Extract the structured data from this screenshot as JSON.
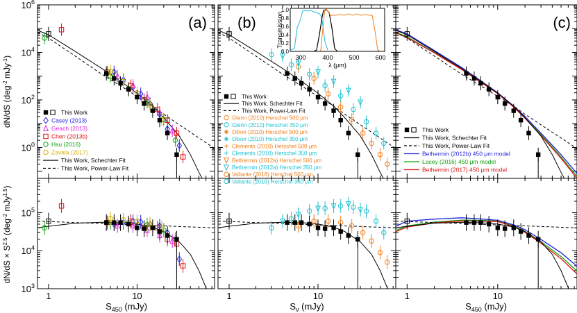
{
  "chart_data": {
    "type": "scatter",
    "yscale": "log",
    "xscale": "log",
    "top_ylim": [
      0.05,
      1000000
    ],
    "bottom_ylim": [
      1000,
      800000
    ],
    "xlim": [
      0.75,
      75
    ],
    "top_yticks": [
      {
        "v": 1,
        "label": "10",
        "sup": "0"
      },
      {
        "v": 100,
        "label": "10",
        "sup": "2"
      },
      {
        "v": 10000,
        "label": "10",
        "sup": "4"
      },
      {
        "v": 1000000,
        "label": "10",
        "sup": "6"
      }
    ],
    "bottom_yticks": [
      {
        "v": 1000,
        "label": "10",
        "sup": "3"
      },
      {
        "v": 10000,
        "label": "10",
        "sup": "4"
      },
      {
        "v": 100000,
        "label": "10",
        "sup": "5"
      }
    ],
    "xticks": [
      {
        "v": 1,
        "label": "1"
      },
      {
        "v": 10,
        "label": "10"
      }
    ],
    "ylabel_top": {
      "main": "dN/dS (deg",
      "sup1": "-2",
      "mid": " mJy",
      "sup2": "-1",
      "end": ")"
    },
    "ylabel_bottom": {
      "main": "dN/dS × S",
      "sup1": "2.5",
      "mid": " (deg",
      "sup2": "-2",
      "mid2": " mJy",
      "sup3": "1.5",
      "end": ")"
    },
    "panels": [
      {
        "label": "(a)",
        "xlabel": {
          "main": "S",
          "sub": "450",
          "end": " (mJy)"
        },
        "legend": [
          {
            "text": "This Work",
            "color": "#000000",
            "marker": "this"
          },
          {
            "text": "Casey (2013)",
            "color": "#1f1fdd",
            "marker": "diamond"
          },
          {
            "text": "Geach (2013)",
            "color": "#e020e0",
            "marker": "triangle"
          },
          {
            "text": "Chen (2013b)",
            "color": "#e01010",
            "marker": "square"
          },
          {
            "text": "Hsu (2016)",
            "color": "#10a010",
            "marker": "circle"
          },
          {
            "text": "Zavala (2017)",
            "color": "#d8b000",
            "marker": "circle"
          },
          {
            "text": "This Work, Schechter Fit",
            "color": "#000000",
            "marker": "solid"
          },
          {
            "text": "This Work, Power-Law Fit",
            "color": "#000000",
            "marker": "dashed"
          }
        ],
        "series": [
          {
            "name": "Casey (2013)",
            "color": "#1f1fdd",
            "marker": "diamond",
            "x": [
              5.5,
              7,
              9,
              11,
              14,
              18,
              22,
              30
            ],
            "y": [
              1500,
              700,
              350,
              180,
              70,
              25,
              6,
              1.2
            ]
          },
          {
            "name": "Geach (2013)",
            "color": "#e020e0",
            "marker": "triangle",
            "x": [
              6,
              9,
              13,
              18,
              25
            ],
            "y": [
              1000,
              400,
              130,
              30,
              5
            ]
          },
          {
            "name": "Chen (2013b)",
            "color": "#e01010",
            "marker": "square",
            "x": [
              1.4,
              4.6,
              8.5,
              12,
              17,
              22,
              28,
              33
            ],
            "y": [
              90000,
              1500,
              400,
              100,
              40,
              14,
              4,
              0.4
            ]
          },
          {
            "name": "Hsu (2016)",
            "color": "#10a010",
            "marker": "circle",
            "x": [
              0.9,
              5,
              8,
              13,
              20,
              27
            ],
            "y": [
              40000,
              1000,
              300,
              80,
              15,
              2
            ]
          },
          {
            "name": "Zavala (2017)",
            "color": "#d8b000",
            "marker": "circle",
            "x": [
              5,
              7,
              10,
              14,
              19
            ],
            "y": [
              1600,
              600,
              200,
              60,
              15
            ]
          }
        ],
        "bottom_series": [
          {
            "name": "Casey (2013)",
            "color": "#1f1fdd",
            "marker": "diamond",
            "x": [
              5.5,
              7,
              9,
              11,
              14,
              18,
              22,
              30
            ],
            "y": [
              50000,
              55000,
              60000,
              57000,
              50000,
              45000,
              30000,
              6000
            ]
          },
          {
            "name": "Geach (2013)",
            "color": "#e020e0",
            "marker": "triangle",
            "x": [
              6,
              9,
              13,
              18,
              25
            ],
            "y": [
              45000,
              45000,
              35000,
              25000,
              18000
            ]
          },
          {
            "name": "Chen (2013b)",
            "color": "#e01010",
            "marker": "square",
            "x": [
              1.4,
              4.6,
              8.5,
              12,
              17,
              22,
              28,
              33
            ],
            "y": [
              150000,
              55000,
              60000,
              40000,
              40000,
              20000,
              15000,
              4000
            ]
          },
          {
            "name": "Hsu (2016)",
            "color": "#10a010",
            "marker": "circle",
            "x": [
              0.9,
              5,
              8,
              13,
              20,
              27
            ],
            "y": [
              40000,
              55000,
              55000,
              48000,
              35000,
              20000
            ]
          },
          {
            "name": "Zavala (2017)",
            "color": "#d8b000",
            "marker": "circle",
            "x": [
              5,
              7,
              10,
              14,
              19
            ],
            "y": [
              70000,
              65000,
              60000,
              50000,
              40000
            ]
          }
        ]
      },
      {
        "label": "(b)",
        "xlabel": {
          "main": "S",
          "sub": "ν",
          "end": " (mJy)"
        },
        "legend": [
          {
            "text": "This Work",
            "color": "#000000",
            "marker": "this"
          },
          {
            "text": "This Work, Schechter Fit",
            "color": "#000000",
            "marker": "solid"
          },
          {
            "text": "This Work, Power-Law Fit",
            "color": "#000000",
            "marker": "dashed"
          },
          {
            "text": "Glenn (2010) Herschel 500 μm",
            "color": "#f08020",
            "marker": "circle"
          },
          {
            "text": "Glenn (2010) Herschel 350 μm",
            "color": "#20c0d0",
            "marker": "circle"
          },
          {
            "text": "Oliver (2010) Herschel 500 μm",
            "color": "#f08020",
            "marker": "asterisk"
          },
          {
            "text": "Oliver (2010) Herschel 350 μm",
            "color": "#20c0d0",
            "marker": "asterisk"
          },
          {
            "text": "Clements (2010) Herschel 500 μm",
            "color": "#f08020",
            "marker": "plus"
          },
          {
            "text": "Clements (2010) Herschel 350 μm",
            "color": "#20c0d0",
            "marker": "plus"
          },
          {
            "text": "Bethermin (2012a) Herschel 500 μm",
            "color": "#f08020",
            "marker": "dtriangle"
          },
          {
            "text": "Bethermin (2012a) Herschel 350 μm",
            "color": "#20c0d0",
            "marker": "dtriangle"
          },
          {
            "text": "Valiante (2016) Herschel 500 μm",
            "color": "#f08020",
            "marker": "circle"
          },
          {
            "text": "Valiante (2016) Herschel 350 μm",
            "color": "#20c0d0",
            "marker": "circle"
          }
        ],
        "series": [
          {
            "name": "Herschel 500 μm",
            "color": "#f08020",
            "marker": "circle",
            "x": [
              6,
              9,
              13,
              18,
              24,
              32,
              40,
              50,
              60
            ],
            "y": [
              2500,
              800,
              180,
              50,
              15,
              4,
              1.5,
              0.5,
              0.2
            ]
          },
          {
            "name": "Herschel 350 μm",
            "color": "#20c0d0",
            "marker": "circle",
            "x": [
              3,
              5,
              8,
              12,
              18,
              25,
              35,
              45,
              55
            ],
            "y": [
              8000,
              3000,
              1200,
              400,
              150,
              40,
              12,
              4,
              1.5
            ]
          },
          {
            "name": "Herschel 350 μm",
            "color": "#20c0d0",
            "marker": "dtriangle",
            "x": [
              4,
              6,
              10,
              15,
              22,
              30
            ],
            "y": [
              7000,
              3500,
              1500,
              600,
              250,
              80
            ]
          }
        ],
        "bottom_series": [
          {
            "name": "Herschel 500 μm",
            "color": "#f08020",
            "marker": "circle",
            "x": [
              6,
              9,
              13,
              18,
              24,
              32,
              40,
              50,
              60
            ],
            "y": [
              45000,
              60000,
              60000,
              55000,
              45000,
              30000,
              18000,
              9000,
              5000
            ]
          },
          {
            "name": "Herschel 350 μm",
            "color": "#20c0d0",
            "marker": "circle",
            "x": [
              3,
              5,
              8,
              12,
              18,
              25,
              35,
              45,
              55
            ],
            "y": [
              40000,
              70000,
              110000,
              130000,
              150000,
              140000,
              110000,
              60000,
              30000
            ]
          },
          {
            "name": "Herschel 350 μm",
            "color": "#20c0d0",
            "marker": "dtriangle",
            "x": [
              4,
              6,
              10,
              15,
              22,
              30
            ],
            "y": [
              60000,
              90000,
              130000,
              150000,
              170000,
              120000
            ]
          }
        ],
        "inset": {
          "ylabel": "Transmission",
          "xlabel": "λ (μm)",
          "xticks": [
            "300",
            "400",
            "500",
            "600"
          ],
          "yticks": [
            "0.0",
            "0.2",
            "0.4",
            "0.6",
            "0.8",
            "1.0"
          ]
        }
      },
      {
        "label": "(c)",
        "xlabel": {
          "main": "S",
          "sub": "450",
          "end": " (mJy)"
        },
        "legend": [
          {
            "text": "This Work",
            "color": "#000000",
            "marker": "this"
          },
          {
            "text": "This Work, Schechter Fit",
            "color": "#000000",
            "marker": "solid"
          },
          {
            "text": "This Work, Power-Law Fit",
            "color": "#000000",
            "marker": "dashed"
          },
          {
            "text": "Bethermin (2012b) 450 μm model",
            "color": "#1f1fdd",
            "marker": "solid"
          },
          {
            "text": "Lacey (2016) 450 μm model",
            "color": "#10a010",
            "marker": "solid"
          },
          {
            "text": "Bethermin (2017) 450 μm model",
            "color": "#e01010",
            "marker": "solid"
          }
        ],
        "models": [
          {
            "name": "Bethermin (2012b) 450 μm model",
            "color": "#1f1fdd",
            "x": [
              0.75,
              1,
              2,
              4,
              7,
              10,
              15,
              20,
              30,
              50,
              75
            ],
            "y": [
              90000,
              60000,
              12000,
              2300,
              520,
              200,
              55,
              20,
              4,
              0.5,
              0.08
            ]
          },
          {
            "name": "Lacey (2016) 450 μm model",
            "color": "#10a010",
            "x": [
              0.75,
              1,
              2,
              4,
              7,
              10,
              15,
              20,
              30,
              50,
              75
            ],
            "y": [
              70000,
              45000,
              10000,
              2000,
              480,
              190,
              52,
              18,
              3.5,
              0.4,
              0.06
            ]
          },
          {
            "name": "Bethermin (2017) 450 μm model",
            "color": "#e01010",
            "x": [
              0.75,
              1,
              2,
              4,
              7,
              10,
              15,
              20,
              30,
              50,
              75
            ],
            "y": [
              65000,
              42000,
              9500,
              1900,
              460,
              185,
              50,
              17,
              3.2,
              0.35,
              0.05
            ]
          }
        ]
      }
    ],
    "this_work": {
      "x": [
        1,
        4.5,
        5.5,
        6.5,
        8,
        10,
        12,
        15,
        18,
        22,
        28
      ],
      "y": [
        60000,
        1300,
        800,
        500,
        280,
        130,
        70,
        35,
        14,
        4,
        0.5
      ]
    },
    "this_work_bottom": {
      "x": [
        1,
        4.5,
        5.5,
        6.5,
        8,
        10,
        12,
        15,
        18,
        22,
        28
      ],
      "y": [
        60000,
        55000,
        55000,
        55000,
        50000,
        40000,
        38000,
        40000,
        32000,
        25000,
        20000
      ]
    },
    "this_work_open_x": [
      1
    ],
    "fits": {
      "schechter": {
        "x": [
          0.75,
          1,
          2,
          4,
          7,
          10,
          15,
          20,
          30,
          40,
          50,
          75
        ],
        "y": [
          85000,
          55000,
          11000,
          2100,
          500,
          190,
          55,
          18,
          3,
          0.5,
          0.09,
          0.005
        ]
      },
      "powerlaw": {
        "x": [
          0.75,
          1,
          2,
          4,
          7,
          10,
          15,
          20,
          30,
          50,
          75
        ],
        "y": [
          70000,
          40000,
          7000,
          1200,
          330,
          140,
          55,
          25,
          9,
          2.5,
          0.9
        ]
      },
      "schechter_bottom": {
        "x": [
          0.75,
          1,
          2,
          4,
          7,
          10,
          15,
          20,
          30,
          40,
          50,
          75
        ],
        "y": [
          40000,
          44000,
          53000,
          56000,
          54000,
          50000,
          42000,
          32000,
          17000,
          8000,
          3000,
          300
        ]
      },
      "powerlaw_bottom": {
        "x": [
          0.75,
          75
        ],
        "y": [
          60000,
          40000
        ]
      }
    }
  }
}
